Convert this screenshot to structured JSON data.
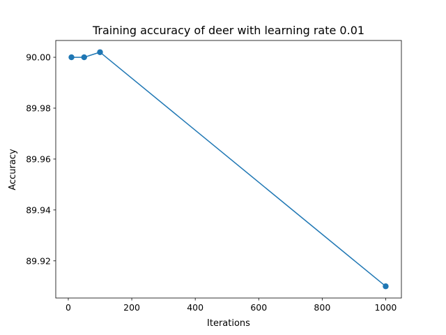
{
  "chart_data": {
    "type": "line",
    "title": "Training accuracy of deer with learning rate 0.01",
    "xlabel": "Iterations",
    "ylabel": "Accuracy",
    "x": [
      10,
      50,
      100,
      1000
    ],
    "series": [
      {
        "values": [
          90.0,
          90.0,
          90.002,
          89.91
        ],
        "color": "#1f77b4",
        "marker": "circle"
      }
    ],
    "xlim": [
      -39.5,
      1049.5
    ],
    "ylim": [
      89.9054,
      90.0066
    ],
    "xticks": [
      0,
      200,
      400,
      600,
      800,
      1000
    ],
    "xtick_labels": [
      "0",
      "200",
      "400",
      "600",
      "800",
      "1000"
    ],
    "yticks": [
      89.92,
      89.94,
      89.96,
      89.98,
      90.0
    ],
    "ytick_labels": [
      "89.92",
      "89.94",
      "89.96",
      "89.98",
      "90.00"
    ],
    "grid": false,
    "legend": false
  }
}
